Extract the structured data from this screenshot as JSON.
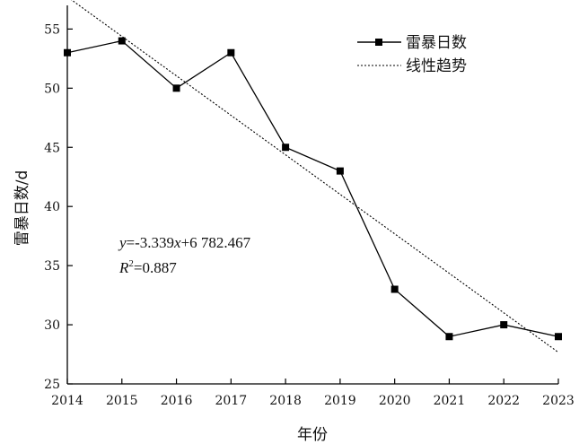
{
  "chart_data": {
    "type": "line",
    "xlabel": "年份",
    "ylabel": "雷暴日数/d",
    "xlim": [
      2014,
      2023
    ],
    "ylim": [
      25,
      57
    ],
    "x_ticks": [
      2014,
      2015,
      2016,
      2017,
      2018,
      2019,
      2020,
      2021,
      2022,
      2023
    ],
    "y_ticks": [
      25,
      30,
      35,
      40,
      45,
      50,
      55
    ],
    "x": [
      2014,
      2015,
      2016,
      2017,
      2018,
      2019,
      2020,
      2021,
      2022,
      2023
    ],
    "series": [
      {
        "name": "雷暴日数",
        "values": [
          53,
          54,
          50,
          53,
          45,
          43,
          33,
          29,
          30,
          29
        ],
        "style": "solid-line-square-markers",
        "color": "#000000"
      },
      {
        "name": "线性趋势",
        "style": "dotted-line",
        "color": "#000000",
        "slope": -3.339,
        "intercept": 6782.467
      }
    ],
    "annotation": {
      "equation_y": "y",
      "equation_rest": "=-3.339",
      "equation_x": "x",
      "equation_tail": "+6 782.467",
      "r2_r": "R",
      "r2_sup": "2",
      "r2_value": "=0.887"
    },
    "legend_position": "top-right",
    "grid": false
  }
}
